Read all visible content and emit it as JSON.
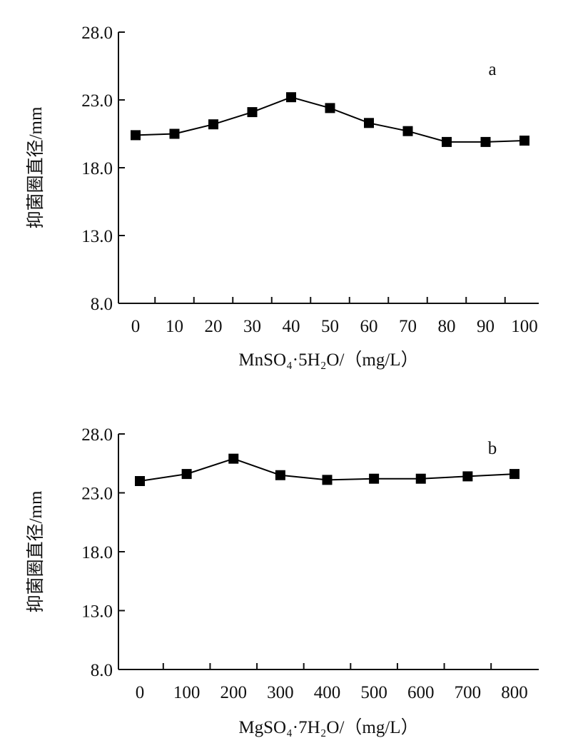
{
  "chart_data": [
    {
      "type": "line",
      "panel_label": "a",
      "ylabel": "抑菌圈直径/mm",
      "xlabel": "MnSO₄·5H₂O/（mg/L）",
      "ylim": [
        8.0,
        28.0
      ],
      "yticks": [
        "8.0",
        "13.0",
        "18.0",
        "23.0",
        "28.0"
      ],
      "categories": [
        "0",
        "10",
        "20",
        "30",
        "40",
        "50",
        "60",
        "70",
        "80",
        "90",
        "100"
      ],
      "values": [
        20.4,
        20.5,
        21.2,
        22.1,
        23.2,
        22.4,
        21.3,
        20.7,
        19.9,
        19.9,
        20.0
      ],
      "marker": "square",
      "color": "#000000"
    },
    {
      "type": "line",
      "panel_label": "b",
      "ylabel": "抑菌圈直径/mm",
      "xlabel": "MgSO₄·7H₂O/（mg/L）",
      "ylim": [
        8.0,
        28.0
      ],
      "yticks": [
        "8.0",
        "13.0",
        "18.0",
        "23.0",
        "28.0"
      ],
      "categories": [
        "0",
        "100",
        "200",
        "300",
        "400",
        "500",
        "600",
        "700",
        "800"
      ],
      "values": [
        24.0,
        24.6,
        25.9,
        24.5,
        24.1,
        24.2,
        24.2,
        24.4,
        24.6
      ],
      "marker": "square",
      "color": "#000000"
    }
  ]
}
